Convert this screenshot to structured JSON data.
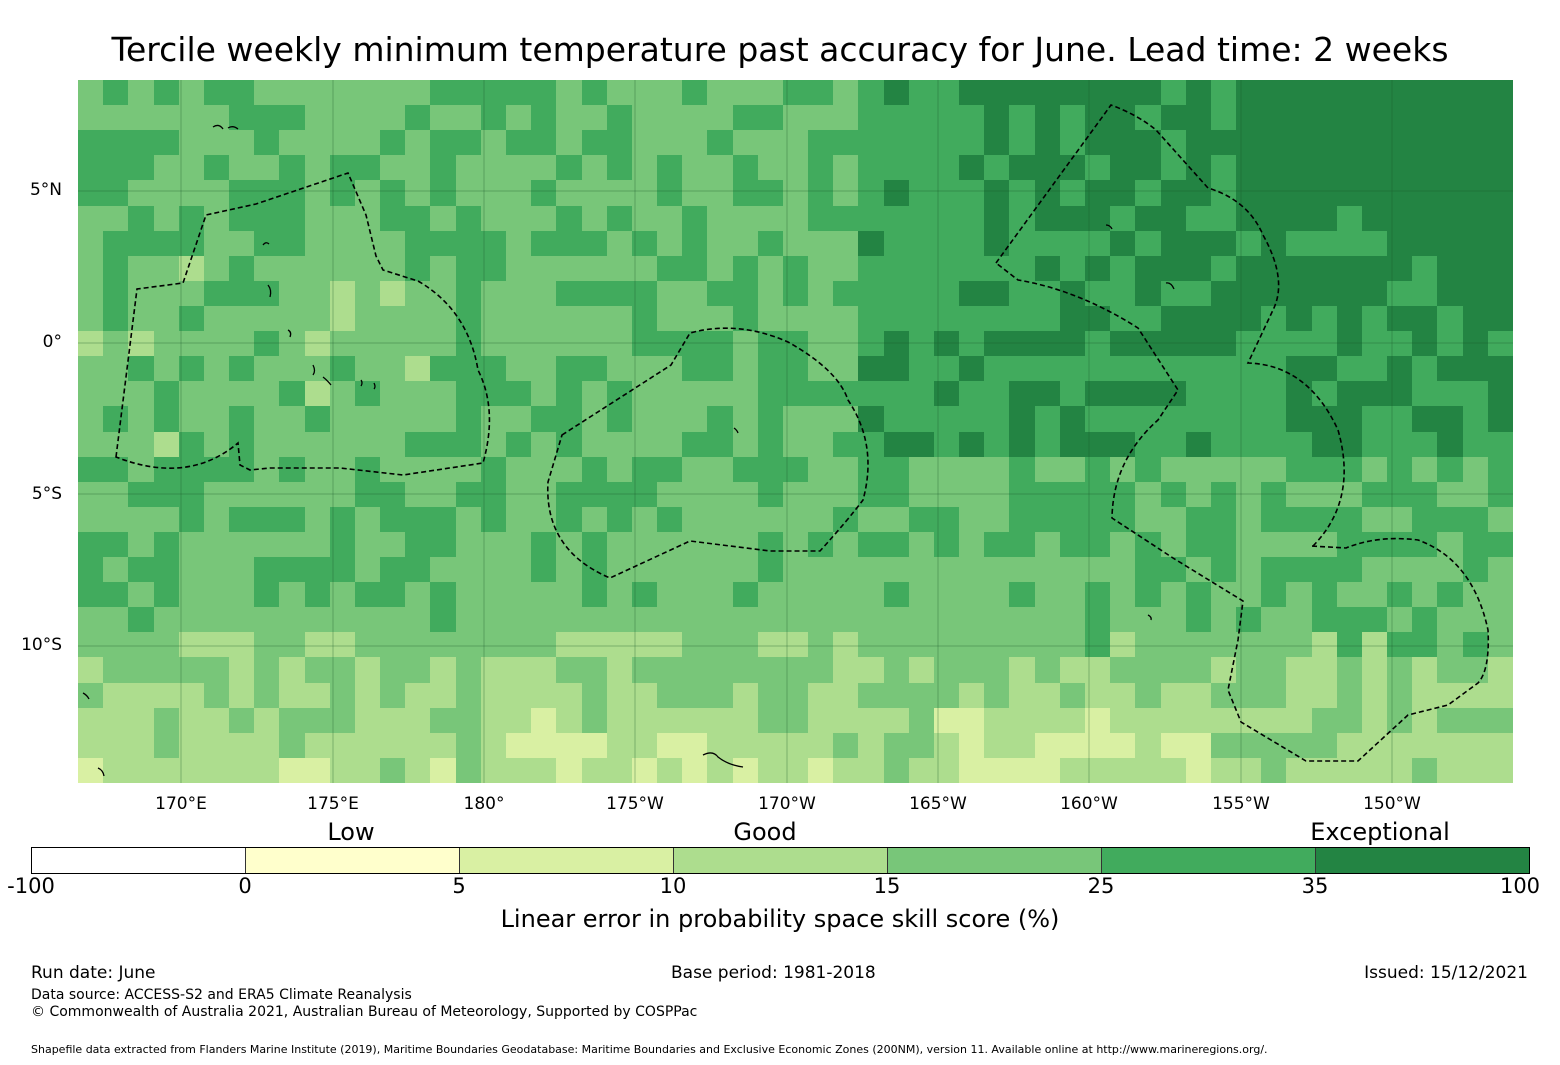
{
  "title": "Tercile weekly minimum temperature past accuracy for June. Lead time: 2 weeks",
  "map": {
    "lat_labels": [
      "5°N",
      "0°",
      "5°S",
      "10°S"
    ],
    "lon_labels": [
      "170°E",
      "175°E",
      "180°",
      "175°W",
      "170°W",
      "165°W",
      "160°W",
      "155°W",
      "150°W"
    ],
    "colors": {
      "class_0_5": "#ffffcc",
      "class_5_10": "#d9f0a3",
      "class_10_15": "#addd8e",
      "class_15_25": "#78c679",
      "class_25_35": "#41ab5d",
      "class_35_100": "#238443",
      "below_0": "#ffffff"
    }
  },
  "legend": {
    "categories": [
      "Low",
      "Good",
      "Exceptional"
    ],
    "ticks": [
      "-100",
      "0",
      "5",
      "10",
      "15",
      "25",
      "35",
      "100"
    ],
    "title": "Linear error in probability space skill score (%)"
  },
  "footer": {
    "run_date": "Run date: June",
    "base_period": "Base period: 1981-2018",
    "issued": "Issued: 15/12/2021",
    "data_source": "Data source: ACCESS-S2 and ERA5 Climate Reanalysis",
    "copyright": "© Commonwealth of Australia 2021, Australian Bureau of Meteorology, Supported by COSPPac",
    "shapefile": "Shapefile data extracted from Flanders Marine Institute (2019), Maritime Boundaries Geodatabase: Maritime Boundaries and Exclusive Economic Zones (200NM), version 11. Available online at http://www.marineregions.org/."
  }
}
